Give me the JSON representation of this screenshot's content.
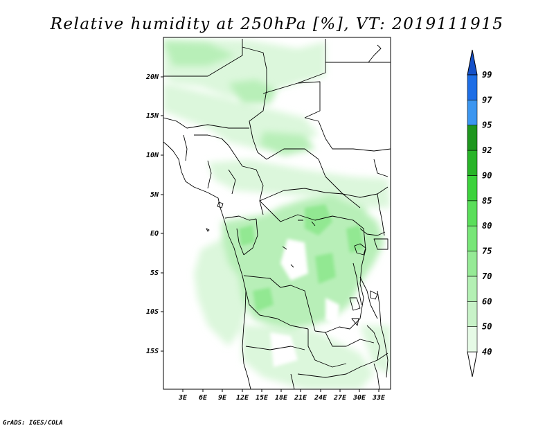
{
  "title": "Relative humidity at 250hPa [%], VT: 2019111915",
  "credit": "GrADS: IGES/COLA",
  "map": {
    "lat_labels": [
      "20N",
      "15N",
      "10N",
      "5N",
      "EQ",
      "5S",
      "10S",
      "15S"
    ],
    "lon_labels": [
      "3E",
      "6E",
      "9E",
      "12E",
      "15E",
      "18E",
      "21E",
      "24E",
      "27E",
      "30E",
      "33E"
    ]
  },
  "colorbar": {
    "levels": [
      "40",
      "50",
      "60",
      "70",
      "75",
      "80",
      "85",
      "90",
      "92",
      "95",
      "97",
      "99"
    ],
    "colors": [
      "#ffffff",
      "#e6fae6",
      "#c8f2c8",
      "#b4f0b4",
      "#96ea96",
      "#78e678",
      "#5ade5a",
      "#3cd23c",
      "#28b428",
      "#1e961e",
      "#3c96f0",
      "#1e6ee6",
      "#1450c8"
    ]
  },
  "chart_data": {
    "type": "heatmap",
    "title": "Relative humidity at 250hPa [%], VT: 2019111915",
    "variable": "Relative humidity at 250hPa",
    "unit": "%",
    "valid_time": "2019111915",
    "lon_range": [
      0.5,
      34.5
    ],
    "lat_range": [
      -20,
      25
    ],
    "lat_ticks": [
      "20N",
      "15N",
      "10N",
      "5N",
      "EQ",
      "5S",
      "10S",
      "15S"
    ],
    "lon_ticks": [
      "3E",
      "6E",
      "9E",
      "12E",
      "15E",
      "18E",
      "21E",
      "24E",
      "27E",
      "30E",
      "33E"
    ],
    "contour_levels": [
      40,
      50,
      60,
      70,
      75,
      80,
      85,
      90,
      92,
      95,
      97,
      99
    ]
  }
}
